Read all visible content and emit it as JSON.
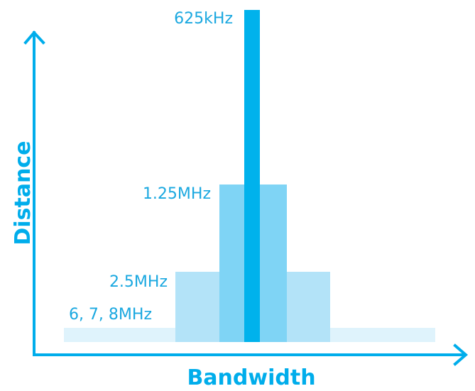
{
  "diagram": {
    "y_axis_title": "Distance",
    "x_axis_title": "Bandwidth",
    "bands": [
      {
        "label": "6, 7, 8MHz",
        "color": "#dff3fc"
      },
      {
        "label": "2.5MHz",
        "color": "#b3e3f8"
      },
      {
        "label": "1.25MHz",
        "color": "#7fd4f5"
      },
      {
        "label": "625kHz",
        "color": "#00b2ec"
      }
    ],
    "colors": {
      "axis": "#00adeb",
      "label": "#1aa8e0"
    }
  }
}
